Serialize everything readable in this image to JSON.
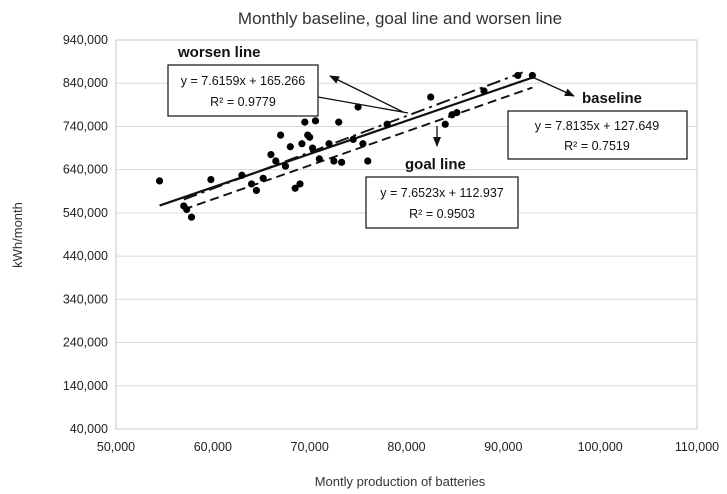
{
  "chart_data": {
    "type": "scatter",
    "title": "Monthly baseline, goal line and worsen line",
    "xlabel": "Montly production of batteries",
    "ylabel": "kWh/month",
    "xlim": [
      50000,
      110000
    ],
    "ylim": [
      40000,
      940000
    ],
    "x_ticks": [
      "50,000",
      "60,000",
      "70,000",
      "80,000",
      "90,000",
      "100,000",
      "110,000"
    ],
    "y_ticks": [
      "40,000",
      "140,000",
      "240,000",
      "340,000",
      "440,000",
      "540,000",
      "640,000",
      "740,000",
      "840,000",
      "940,000"
    ],
    "grid": "horizontal",
    "legend": "none",
    "points": [
      {
        "x": 54500,
        "y": 614000
      },
      {
        "x": 57000,
        "y": 556000
      },
      {
        "x": 57300,
        "y": 548000
      },
      {
        "x": 57800,
        "y": 530000
      },
      {
        "x": 59800,
        "y": 617000
      },
      {
        "x": 63000,
        "y": 627000
      },
      {
        "x": 64000,
        "y": 607000
      },
      {
        "x": 64500,
        "y": 592000
      },
      {
        "x": 65200,
        "y": 620000
      },
      {
        "x": 66000,
        "y": 675000
      },
      {
        "x": 66500,
        "y": 660000
      },
      {
        "x": 67000,
        "y": 720000
      },
      {
        "x": 67500,
        "y": 648000
      },
      {
        "x": 68000,
        "y": 693000
      },
      {
        "x": 68500,
        "y": 597000
      },
      {
        "x": 69000,
        "y": 607000
      },
      {
        "x": 69200,
        "y": 700000
      },
      {
        "x": 69500,
        "y": 750000
      },
      {
        "x": 69800,
        "y": 720000
      },
      {
        "x": 70000,
        "y": 715000
      },
      {
        "x": 70300,
        "y": 690000
      },
      {
        "x": 70600,
        "y": 753000
      },
      {
        "x": 71000,
        "y": 665000
      },
      {
        "x": 72000,
        "y": 700000
      },
      {
        "x": 72500,
        "y": 660000
      },
      {
        "x": 73000,
        "y": 750000
      },
      {
        "x": 73300,
        "y": 657000
      },
      {
        "x": 74500,
        "y": 710000
      },
      {
        "x": 75000,
        "y": 785000
      },
      {
        "x": 75500,
        "y": 700000
      },
      {
        "x": 76000,
        "y": 660000
      },
      {
        "x": 78000,
        "y": 745000
      },
      {
        "x": 82500,
        "y": 808000
      },
      {
        "x": 84000,
        "y": 745000
      },
      {
        "x": 84700,
        "y": 767000
      },
      {
        "x": 85200,
        "y": 772000
      },
      {
        "x": 88000,
        "y": 822000
      },
      {
        "x": 91500,
        "y": 858000
      },
      {
        "x": 93000,
        "y": 858000
      }
    ],
    "lines": [
      {
        "name": "worsen line",
        "style": "dash-dot",
        "x": [
          57000,
          92000
        ],
        "y": [
          571000,
          865000
        ]
      },
      {
        "name": "baseline",
        "style": "solid",
        "x": [
          54500,
          93000
        ],
        "y": [
          557000,
          853000
        ]
      },
      {
        "name": "goal line",
        "style": "dashed",
        "x": [
          57000,
          93000
        ],
        "y": [
          548000,
          830000
        ]
      }
    ],
    "annotations": [
      {
        "label": "worsen line",
        "equation": "y = 7.6159x + 165.266",
        "r2": "R² = 0.9779"
      },
      {
        "label": "goal line",
        "equation": "y = 7.6523x + 112.937",
        "r2": "R² = 0.9503"
      },
      {
        "label": "baseline",
        "equation": "y = 7.8135x + 127.649",
        "r2": "R² = 0.7519"
      }
    ]
  }
}
